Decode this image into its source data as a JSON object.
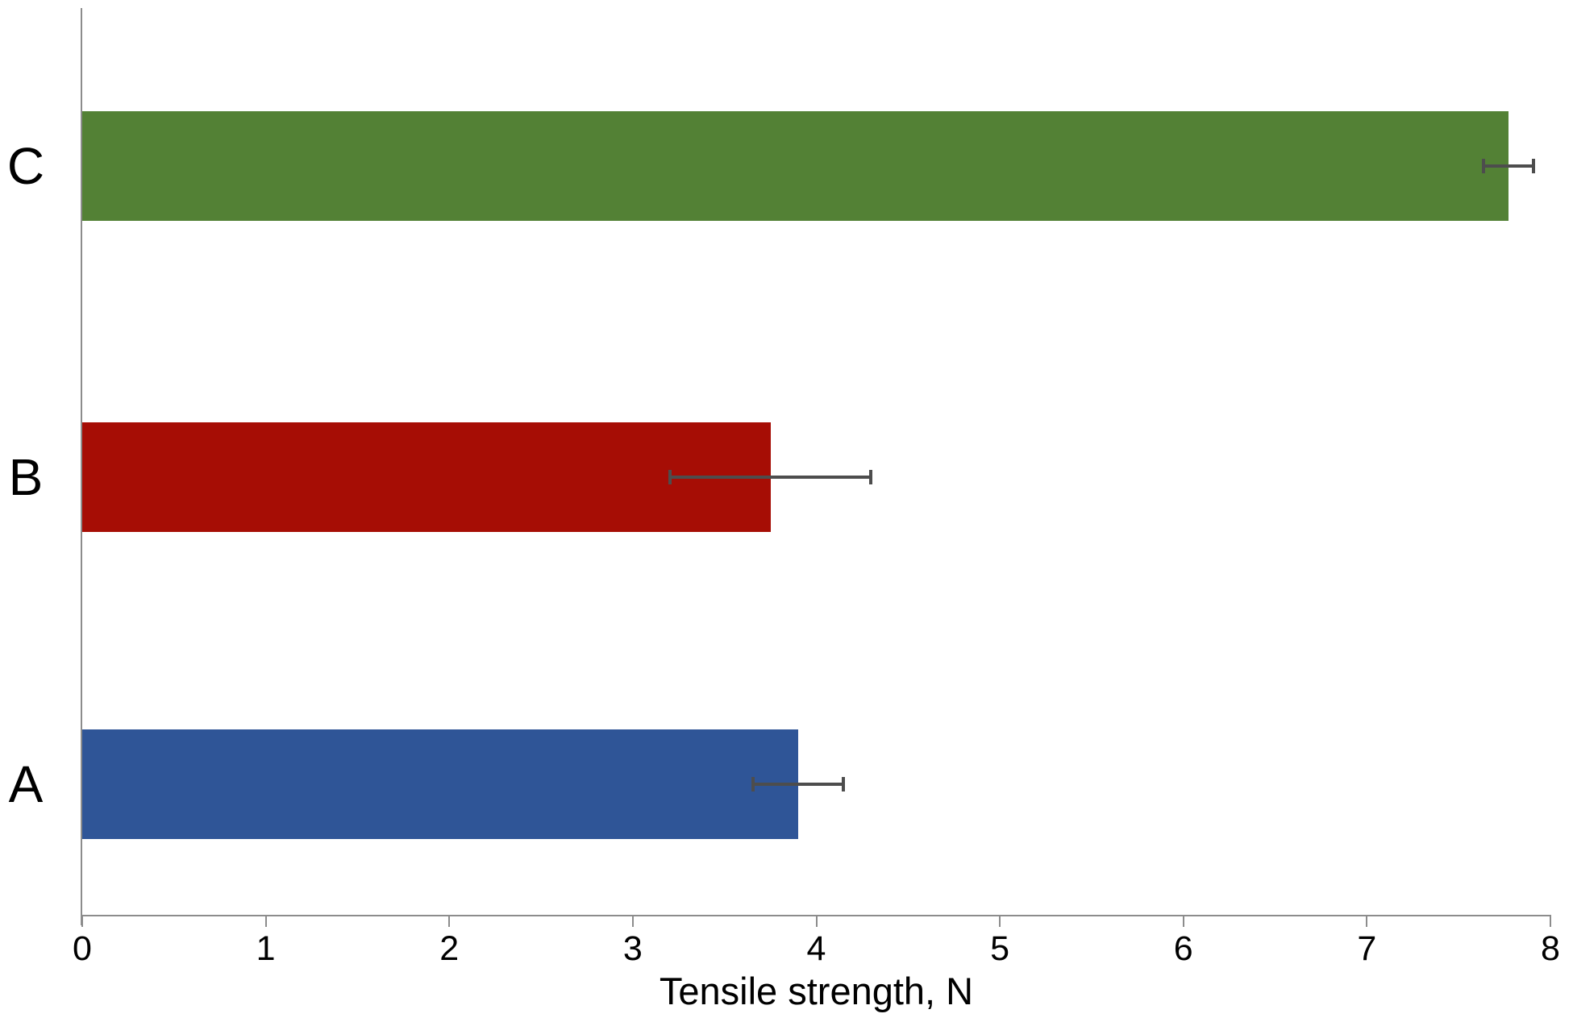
{
  "chart_data": {
    "type": "bar",
    "orientation": "horizontal",
    "title": "",
    "xlabel": "Tensile strength, N",
    "ylabel": "",
    "xlim": [
      0,
      8
    ],
    "xticks": [
      0,
      1,
      2,
      3,
      4,
      5,
      6,
      7,
      8
    ],
    "grid": false,
    "legend": false,
    "bars_top_to_bottom": [
      {
        "category": "C",
        "value": 7.77,
        "error": 0.14,
        "color": "#538135"
      },
      {
        "category": "B",
        "value": 3.75,
        "error": 0.55,
        "color": "#A60D05"
      },
      {
        "category": "A",
        "value": 3.9,
        "error": 0.25,
        "color": "#2F5597"
      }
    ],
    "axis_color": "#8C8C8C",
    "error_bar_color": "#4D4D4D",
    "text_color": "#000000",
    "background": "#FFFFFF"
  }
}
